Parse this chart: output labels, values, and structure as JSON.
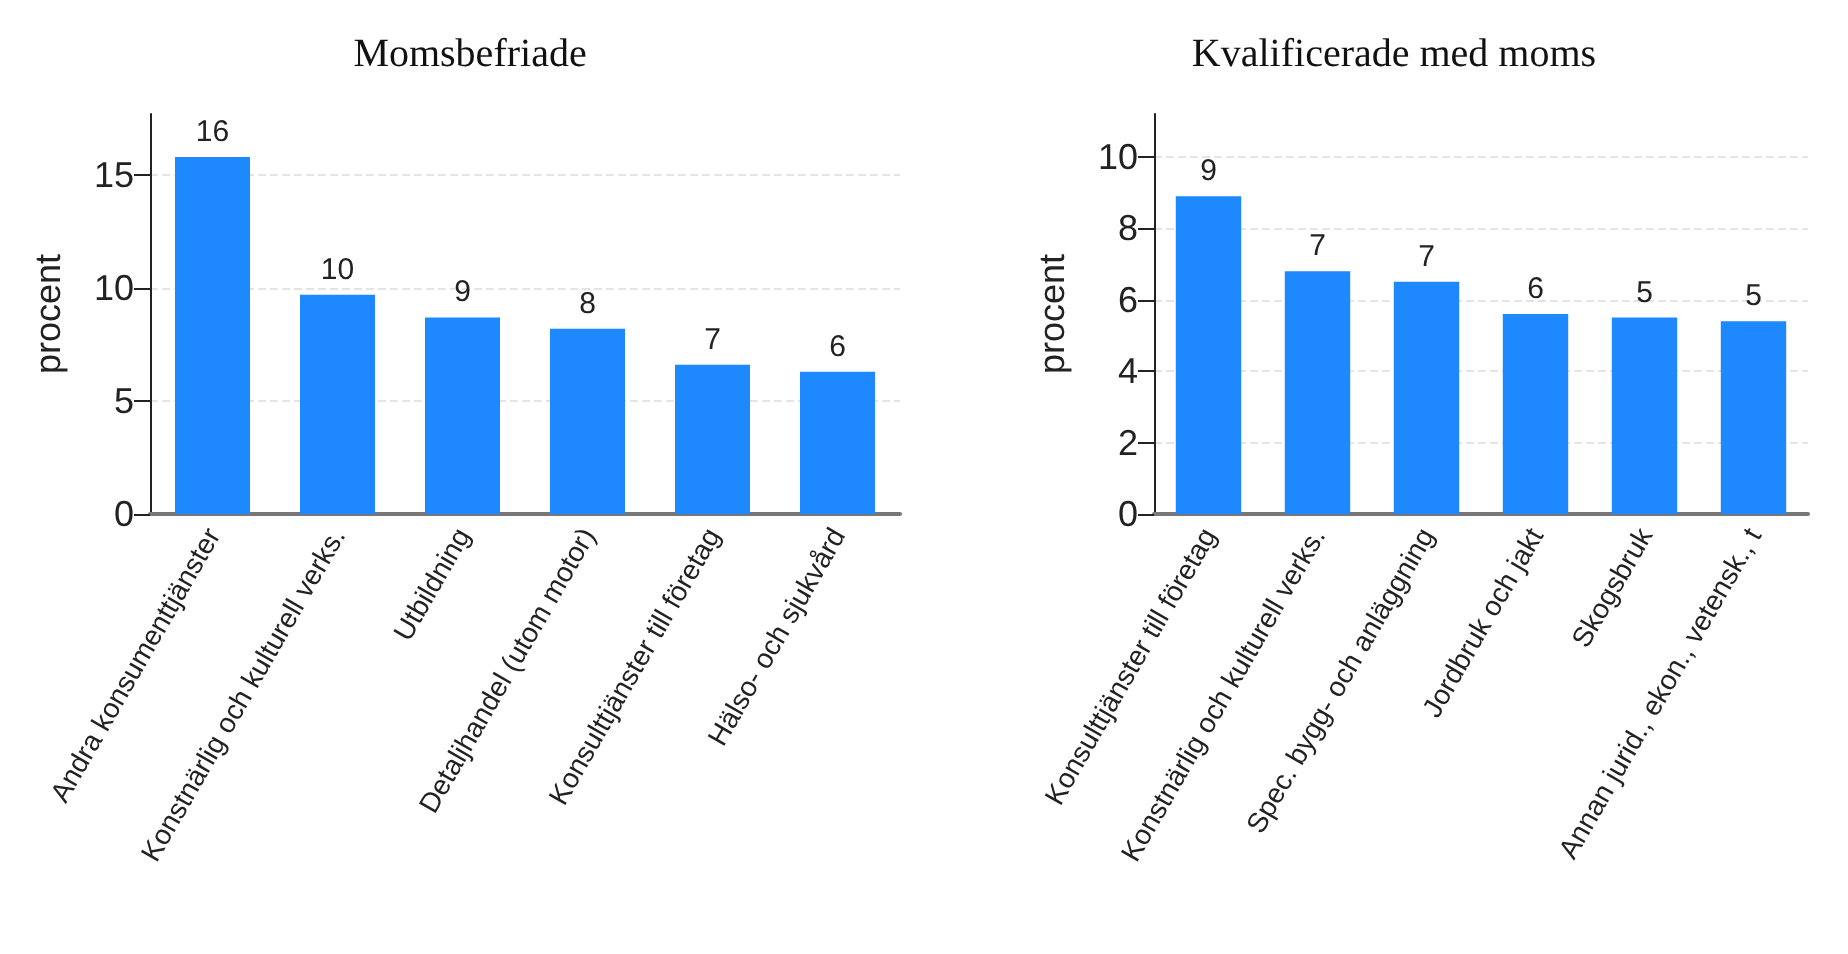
{
  "chart_data": [
    {
      "type": "bar",
      "title": "Momsbefriade",
      "ylabel": "procent",
      "categories": [
        "Andra konsumenttjänster",
        "Konstnärlig och kulturell verks.",
        "Utbildning",
        "Detaljhandel (utom motor)",
        "Konsulttjänster till företag",
        "Hälso- och sjukvård"
      ],
      "values": [
        15.8,
        9.7,
        8.7,
        8.2,
        6.6,
        6.3
      ],
      "value_labels": [
        "16",
        "10",
        "9",
        "8",
        "7",
        "6"
      ],
      "color": "#1e88ff",
      "ylim": [
        0,
        17.7
      ],
      "yticks": [
        0,
        5,
        10,
        15
      ],
      "grid": "y"
    },
    {
      "type": "bar",
      "title": "Kvalificerade med moms",
      "ylabel": "procent",
      "categories": [
        "Konsulttjänster till företag",
        "Konstnärlig och kulturell verks.",
        "Spec. bygg- och anläggning",
        "Jordbruk och jakt",
        "Skogsbruk",
        "Annan jurid., ekon., vetensk., t"
      ],
      "values": [
        8.9,
        6.8,
        6.5,
        5.6,
        5.5,
        5.4
      ],
      "value_labels": [
        "9",
        "7",
        "7",
        "6",
        "5",
        "5"
      ],
      "color": "#1e88ff",
      "ylim": [
        0,
        11.2
      ],
      "yticks": [
        0,
        2,
        4,
        6,
        8,
        10
      ],
      "grid": "y"
    }
  ]
}
